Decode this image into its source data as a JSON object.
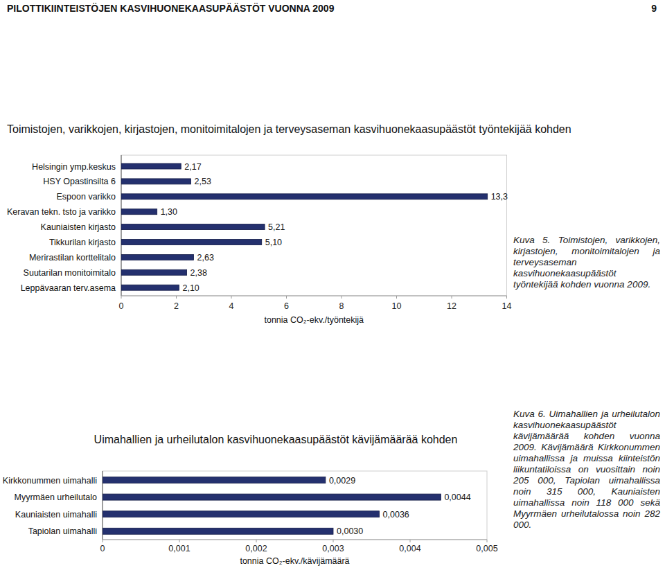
{
  "page": {
    "header": "PILOTTIKIINTEISTÖJEN KASVIHUONEKAASUPÄÄSTÖT VUONNA 2009",
    "page_number": "9",
    "captions": [
      "Kuva 5. Toimistojen, varikkojen, kirjastojen, monitoimitalojen ja terveysaseman kasvihuonekaasupäästöt työntekijää kohden vuonna 2009.",
      "Kuva 6. Uimahallien ja urheilutalon kasvihuonekaasupäästöt kävijämäärää kohden vuonna 2009. Kävijämäärä Kirkkonummen uimahallissa ja muissa kiinteistön liikuntatiloissa on vuosittain noin 205 000, Tapiolan uimahallissa noin 315 000, Kauniaisten uimahallissa noin 118 000 sekä Myyrmäen urheilutalossa noin 282 000."
    ]
  },
  "chart_data": [
    {
      "type": "bar",
      "orientation": "horizontal",
      "title": "Toimistojen, varikkojen, kirjastojen, monitoimitalojen ja terveysaseman kasvihuonekaasupäästöt työntekijää kohden",
      "x_label": "tonnia CO₂-ekv./työntekijä",
      "categories": [
        "Helsingin ymp.keskus",
        "HSY Opastinsilta 6",
        "Espoon varikko",
        "Keravan tekn. tsto ja varikko",
        "Kauniaisten kirjasto",
        "Tikkurilan kirjasto",
        "Merirastilan korttelitalo",
        "Suutarilan monitoimitalo",
        "Leppävaaran terv.asema"
      ],
      "values": [
        2.17,
        2.53,
        13.3,
        1.3,
        5.21,
        5.1,
        2.63,
        2.38,
        2.1
      ],
      "value_labels": [
        "2,17",
        "2,53",
        "13,3",
        "1,30",
        "5,21",
        "5,10",
        "2,63",
        "2,38",
        "2,10"
      ],
      "data_labels": true,
      "color": "#24306e",
      "grid": false,
      "xlim": [
        0,
        14
      ],
      "xticks": [
        0,
        2,
        4,
        6,
        8,
        10,
        12,
        14
      ]
    },
    {
      "type": "bar",
      "orientation": "horizontal",
      "title": "Uimahallien ja urheilutalon kasvihuonekaasupäästöt kävijämäärää kohden",
      "x_label": "tonnia CO₂-ekv./kävijämäärä",
      "categories": [
        "Kirkkonummen uimahalli",
        "Myyrmäen urheilutalo",
        "Kauniaisten uimahalli",
        "Tapiolan uimahalli"
      ],
      "values": [
        0.0029,
        0.0044,
        0.0036,
        0.003
      ],
      "value_labels": [
        "0,0029",
        "0,0044",
        "0,0036",
        "0,0030"
      ],
      "data_labels": true,
      "color": "#24306e",
      "grid": false,
      "xlim": [
        0,
        0.005
      ],
      "xticks": [
        0,
        {
          "value": 0.001,
          "label": "0,001"
        },
        {
          "value": 0.002,
          "label": "0,002"
        },
        {
          "value": 0.003,
          "label": "0,003"
        },
        {
          "value": 0.004,
          "label": "0,004"
        },
        {
          "value": 0.005,
          "label": "0,005"
        }
      ]
    }
  ]
}
